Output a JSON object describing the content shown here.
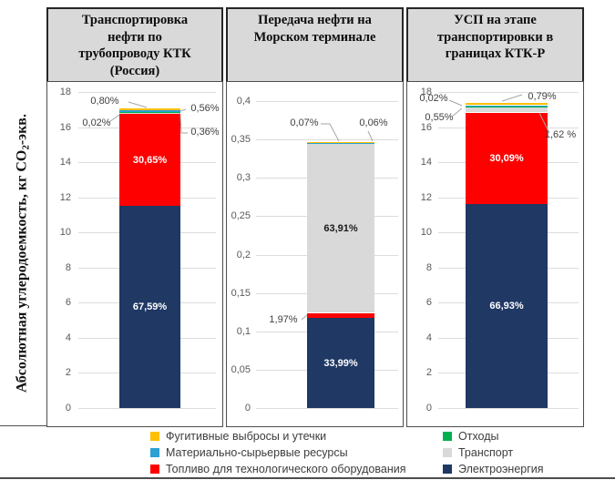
{
  "figure": {
    "y_axis_title": "Абсолютная углеродоемкость, кг СО2-экв.",
    "y_axis_title_main": "Абсолютная углеродоемкость, кг СО",
    "y_axis_title_sub": "2",
    "y_axis_title_tail": "-экв."
  },
  "colors": {
    "fugitive": "#FFC000",
    "material": "#2BA0D4",
    "fuel": "#FF0000",
    "waste": "#00B050",
    "transport": "#D9D9D9",
    "electricity": "#1F3864",
    "header_bg": "#D9D9D9",
    "gridline": "#DCDCDC",
    "leader_line": "#A6A6A6"
  },
  "legend": {
    "left": [
      {
        "key": "fugitive",
        "label": "Фугитивные выбросы и утечки"
      },
      {
        "key": "material",
        "label": "Материально-сырьервые ресурсы"
      },
      {
        "key": "fuel",
        "label": "Топливо для технологического оборудования"
      }
    ],
    "right": [
      {
        "key": "waste",
        "label": "Отходы"
      },
      {
        "key": "transport",
        "label": "Транспорт"
      },
      {
        "key": "electricity",
        "label": "Электроэнергия"
      }
    ]
  },
  "chart_data": [
    {
      "type": "bar",
      "stacked": true,
      "title": "Транспортировка нефти по трубопроводу КТК (Россия)",
      "title_lines": [
        "Транспортировка",
        "нефти по",
        "трубопроводу КТК",
        "(Россия)"
      ],
      "ylabel": "Абсолютная углеродоемкость, кг СО2-экв.",
      "ylim": [
        0,
        18
      ],
      "yticks": [
        "18",
        "16",
        "14",
        "12",
        "10",
        "8",
        "6",
        "4",
        "2",
        "0"
      ],
      "grid": true,
      "bar_total_estimate": 17.05,
      "segments": [
        {
          "series": "Электроэнергия",
          "key": "electricity",
          "pct": 67.59,
          "label": "67,59%",
          "label_style": "inside-light"
        },
        {
          "series": "Топливо для технологического оборудования",
          "key": "fuel",
          "pct": 30.65,
          "label": "30,65%",
          "label_style": "inside-light"
        },
        {
          "series": "Транспорт",
          "key": "transport",
          "pct": 0.36,
          "label": "0,36%",
          "label_style": "callout"
        },
        {
          "series": "Отходы",
          "key": "waste",
          "pct": 0.02,
          "label": "0,02%",
          "label_style": "callout"
        },
        {
          "series": "Материально-сырьервые ресурсы",
          "key": "material",
          "pct": 0.56,
          "label": "0,56%",
          "label_style": "callout"
        },
        {
          "series": "Фугитивные выбросы и утечки",
          "key": "fugitive",
          "pct": 0.8,
          "label": "0,80%",
          "label_style": "callout"
        }
      ]
    },
    {
      "type": "bar",
      "stacked": true,
      "title": "Передача нефти на Морском терминале",
      "title_lines": [
        "Передача нефти на",
        "Морском терминале"
      ],
      "ylabel": "Абсолютная углеродоемкость, кг СО2-экв.",
      "ylim": [
        0,
        0.4
      ],
      "yticks": [
        "0,4",
        "0,35",
        "0,3",
        "0,25",
        "0,2",
        "0,15",
        "0,1",
        "0,05",
        "0"
      ],
      "grid": true,
      "bar_total_estimate": 0.345,
      "segments": [
        {
          "series": "Электроэнергия",
          "key": "electricity",
          "pct": 33.99,
          "label": "33,99%",
          "label_style": "inside-light"
        },
        {
          "series": "Топливо для технологического оборудования",
          "key": "fuel",
          "pct": 1.97,
          "label": "1,97%",
          "label_style": "callout"
        },
        {
          "series": "Транспорт",
          "key": "transport",
          "pct": 63.91,
          "label": "63,91%",
          "label_style": "inside-dark"
        },
        {
          "series": "Материально-сырьервые ресурсы",
          "key": "material",
          "pct": 0.07,
          "label": "0,07%",
          "label_style": "callout"
        },
        {
          "series": "Фугитивные выбросы и утечки",
          "key": "fugitive",
          "pct": 0.06,
          "label": "0,06%",
          "label_style": "callout"
        }
      ]
    },
    {
      "type": "bar",
      "stacked": true,
      "title": "УСП на этапе транспортировки в границах КТК-Р",
      "title_lines": [
        "УСП на этапе",
        "транспортировки в",
        "границах КТК-Р"
      ],
      "ylabel": "Абсолютная углеродоемкость, кг СО2-экв.",
      "ylim": [
        0,
        18
      ],
      "yticks": [
        "18",
        "16",
        "14",
        "12",
        "10",
        "8",
        "6",
        "4",
        "2",
        "0"
      ],
      "grid": true,
      "bar_total_estimate": 17.35,
      "segments": [
        {
          "series": "Электроэнергия",
          "key": "electricity",
          "pct": 66.93,
          "label": "66,93%",
          "label_style": "inside-light"
        },
        {
          "series": "Топливо для технологического оборудования",
          "key": "fuel",
          "pct": 30.09,
          "label": "30,09%",
          "label_style": "inside-light"
        },
        {
          "series": "Транспорт",
          "key": "transport",
          "pct": 1.62,
          "label": "1,62 %",
          "label_style": "callout"
        },
        {
          "series": "Отходы",
          "key": "waste",
          "pct": 0.02,
          "label": "0,02%",
          "label_style": "callout"
        },
        {
          "series": "Материально-сырьервые ресурсы",
          "key": "material",
          "pct": 0.55,
          "label": "0,55%",
          "label_style": "callout"
        },
        {
          "series": "Фугитивные выбросы и утечки",
          "key": "fugitive",
          "pct": 0.79,
          "label": "0,79%",
          "label_style": "callout"
        }
      ]
    }
  ]
}
